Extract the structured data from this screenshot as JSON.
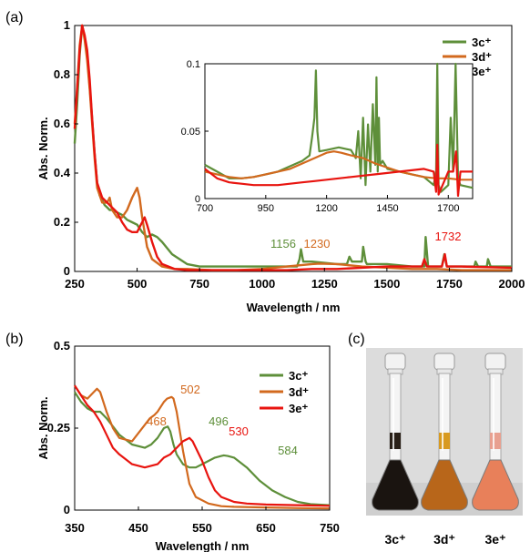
{
  "colors": {
    "3c": "#5e8f3a",
    "3d": "#d2691e",
    "3e": "#e8140f"
  },
  "chart_data": [
    {
      "panel": "(a)",
      "type": "line",
      "xlabel": "Wavelength / nm",
      "ylabel": "Abs. Norm.",
      "xlim": [
        250,
        2000
      ],
      "ylim": [
        0,
        1
      ],
      "xticks": [
        "250",
        "500",
        "750",
        "1000",
        "1250",
        "1500",
        "1750",
        "2000"
      ],
      "yticks": [
        "0",
        "0.2",
        "0.4",
        "0.6",
        "0.8",
        "1"
      ],
      "legend": [
        "3c⁺",
        "3d⁺",
        "3e⁺"
      ],
      "annotations": [
        {
          "text": "1156",
          "series": "3c"
        },
        {
          "text": "1230",
          "series": "3d"
        },
        {
          "text": "1732",
          "series": "3e"
        }
      ],
      "series": [
        {
          "name": "3c⁺",
          "key": "3c",
          "x": [
            250,
            260,
            270,
            280,
            290,
            300,
            310,
            320,
            330,
            340,
            350,
            360,
            370,
            380,
            390,
            400,
            420,
            440,
            460,
            480,
            500,
            520,
            540,
            560,
            580,
            600,
            640,
            700,
            750,
            800,
            900,
            1000,
            1100,
            1140,
            1150,
            1156,
            1165,
            1200,
            1300,
            1340,
            1350,
            1360,
            1400,
            1405,
            1415,
            1420,
            1500,
            1600,
            1650,
            1655,
            1665,
            1700,
            1720,
            1730,
            1740,
            1800,
            1850,
            1855,
            1865,
            1900,
            1905,
            1915,
            2000
          ],
          "y": [
            0.52,
            0.68,
            0.88,
            1.0,
            0.95,
            0.88,
            0.75,
            0.62,
            0.48,
            0.36,
            0.31,
            0.29,
            0.27,
            0.26,
            0.25,
            0.25,
            0.24,
            0.23,
            0.21,
            0.2,
            0.19,
            0.16,
            0.14,
            0.15,
            0.14,
            0.12,
            0.07,
            0.03,
            0.02,
            0.02,
            0.02,
            0.02,
            0.02,
            0.02,
            0.05,
            0.09,
            0.04,
            0.04,
            0.03,
            0.03,
            0.06,
            0.04,
            0.04,
            0.1,
            0.04,
            0.03,
            0.03,
            0.02,
            0.02,
            0.14,
            0.02,
            0.02,
            0.02,
            0.07,
            0.02,
            0.02,
            0.02,
            0.04,
            0.02,
            0.02,
            0.05,
            0.02,
            0.02
          ]
        },
        {
          "name": "3d⁺",
          "key": "3d",
          "x": [
            250,
            260,
            270,
            280,
            290,
            300,
            310,
            320,
            330,
            340,
            360,
            380,
            390,
            400,
            420,
            440,
            460,
            480,
            490,
            500,
            510,
            520,
            540,
            560,
            600,
            650,
            700,
            800,
            900,
            1000,
            1100,
            1200,
            1230,
            1300,
            1400,
            1500,
            1600,
            1700,
            1800,
            2000
          ],
          "y": [
            0.6,
            0.75,
            0.92,
            1.0,
            0.94,
            0.86,
            0.74,
            0.6,
            0.46,
            0.34,
            0.28,
            0.28,
            0.3,
            0.25,
            0.22,
            0.22,
            0.25,
            0.3,
            0.32,
            0.34,
            0.3,
            0.22,
            0.1,
            0.05,
            0.02,
            0.01,
            0.01,
            0.005,
            0.005,
            0.01,
            0.02,
            0.03,
            0.032,
            0.03,
            0.02,
            0.015,
            0.01,
            0.01,
            0.005,
            0.005
          ]
        },
        {
          "name": "3e⁺",
          "key": "3e",
          "x": [
            250,
            260,
            270,
            280,
            290,
            300,
            310,
            320,
            330,
            340,
            360,
            380,
            400,
            420,
            440,
            460,
            480,
            500,
            510,
            520,
            530,
            540,
            560,
            580,
            600,
            650,
            700,
            800,
            900,
            1000,
            1100,
            1200,
            1300,
            1400,
            1500,
            1600,
            1640,
            1650,
            1660,
            1700,
            1720,
            1732,
            1740,
            1800,
            2000
          ],
          "y": [
            0.58,
            0.74,
            0.9,
            1.0,
            0.96,
            0.9,
            0.78,
            0.62,
            0.48,
            0.36,
            0.3,
            0.28,
            0.26,
            0.24,
            0.2,
            0.17,
            0.16,
            0.16,
            0.18,
            0.2,
            0.22,
            0.19,
            0.12,
            0.06,
            0.03,
            0.01,
            0.005,
            0.005,
            0.005,
            0.005,
            0.005,
            0.01,
            0.01,
            0.015,
            0.02,
            0.02,
            0.02,
            0.05,
            0.02,
            0.02,
            0.02,
            0.07,
            0.02,
            0.02,
            0.015
          ]
        }
      ]
    },
    {
      "panel": "inset",
      "type": "line",
      "xlim": [
        700,
        1800
      ],
      "ylim": [
        0,
        0.1
      ],
      "xticks": [
        "700",
        "950",
        "1200",
        "1450",
        "1700"
      ],
      "yticks": [
        "0",
        "0.05",
        "0.1"
      ],
      "series": [
        {
          "name": "3c⁺",
          "key": "3c",
          "x": [
            700,
            750,
            800,
            850,
            900,
            950,
            1000,
            1050,
            1100,
            1130,
            1140,
            1150,
            1156,
            1162,
            1170,
            1200,
            1250,
            1300,
            1320,
            1330,
            1340,
            1350,
            1360,
            1370,
            1380,
            1390,
            1400,
            1405,
            1410,
            1415,
            1420,
            1430,
            1440,
            1450,
            1500,
            1550,
            1600,
            1640,
            1650,
            1655,
            1660,
            1670,
            1700,
            1710,
            1720,
            1730,
            1740,
            1750,
            1800
          ],
          "y": [
            0.025,
            0.02,
            0.015,
            0.015,
            0.016,
            0.018,
            0.02,
            0.024,
            0.028,
            0.032,
            0.045,
            0.06,
            0.095,
            0.05,
            0.035,
            0.036,
            0.038,
            0.036,
            0.03,
            0.05,
            0.015,
            0.06,
            0.01,
            0.055,
            0.02,
            0.07,
            0.025,
            0.09,
            0.02,
            0.06,
            0.025,
            0.028,
            0.025,
            0.022,
            0.02,
            0.018,
            0.016,
            0.01,
            0.02,
            0.1,
            0.01,
            0.005,
            0.01,
            0.06,
            0.02,
            0.1,
            0.015,
            0.01,
            0.008
          ]
        },
        {
          "name": "3d⁺",
          "key": "3d",
          "x": [
            700,
            750,
            800,
            850,
            900,
            950,
            1000,
            1050,
            1100,
            1150,
            1200,
            1230,
            1260,
            1300,
            1350,
            1400,
            1450,
            1500,
            1550,
            1600,
            1650,
            1700,
            1750,
            1800
          ],
          "y": [
            0.02,
            0.018,
            0.016,
            0.015,
            0.016,
            0.018,
            0.02,
            0.022,
            0.026,
            0.03,
            0.034,
            0.035,
            0.034,
            0.032,
            0.03,
            0.026,
            0.023,
            0.02,
            0.018,
            0.016,
            0.015,
            0.015,
            0.014,
            0.014
          ]
        },
        {
          "name": "3e⁺",
          "key": "3e",
          "x": [
            700,
            750,
            800,
            850,
            900,
            950,
            1000,
            1050,
            1100,
            1150,
            1200,
            1250,
            1300,
            1350,
            1400,
            1450,
            1500,
            1550,
            1600,
            1640,
            1650,
            1655,
            1660,
            1700,
            1720,
            1732,
            1740,
            1750,
            1800
          ],
          "y": [
            0.022,
            0.015,
            0.012,
            0.011,
            0.01,
            0.01,
            0.01,
            0.011,
            0.012,
            0.013,
            0.014,
            0.015,
            0.016,
            0.017,
            0.018,
            0.019,
            0.02,
            0.021,
            0.022,
            0.02,
            0.005,
            0.04,
            0.003,
            0.02,
            0.02,
            0.035,
            0.002,
            0.02,
            0.02
          ]
        }
      ]
    },
    {
      "panel": "(b)",
      "type": "line",
      "xlabel": "Wavelength / nm",
      "ylabel": "Abs. Norm.",
      "xlim": [
        350,
        750
      ],
      "ylim": [
        0,
        0.5
      ],
      "xticks": [
        "350",
        "450",
        "550",
        "650",
        "750"
      ],
      "yticks": [
        "0",
        "0.25",
        "0.5"
      ],
      "legend": [
        "3c⁺",
        "3d⁺",
        "3e⁺"
      ],
      "annotations": [
        {
          "text": "468",
          "series": "3d"
        },
        {
          "text": "502",
          "series": "3d"
        },
        {
          "text": "496",
          "series": "3c"
        },
        {
          "text": "530",
          "series": "3e"
        },
        {
          "text": "584",
          "series": "3c"
        }
      ],
      "series": [
        {
          "name": "3c⁺",
          "key": "3c",
          "x": [
            350,
            360,
            370,
            380,
            390,
            400,
            420,
            440,
            460,
            470,
            480,
            490,
            496,
            500,
            505,
            510,
            520,
            530,
            540,
            550,
            560,
            570,
            580,
            584,
            590,
            600,
            620,
            640,
            660,
            680,
            700,
            720,
            750
          ],
          "y": [
            0.36,
            0.33,
            0.31,
            0.3,
            0.3,
            0.28,
            0.23,
            0.2,
            0.19,
            0.2,
            0.22,
            0.25,
            0.255,
            0.24,
            0.2,
            0.17,
            0.14,
            0.13,
            0.13,
            0.14,
            0.15,
            0.16,
            0.165,
            0.167,
            0.165,
            0.16,
            0.13,
            0.09,
            0.06,
            0.04,
            0.025,
            0.018,
            0.015
          ]
        },
        {
          "name": "3d⁺",
          "key": "3d",
          "x": [
            350,
            360,
            370,
            380,
            385,
            390,
            400,
            410,
            420,
            440,
            460,
            468,
            475,
            480,
            490,
            495,
            502,
            505,
            510,
            520,
            530,
            540,
            560,
            580,
            600,
            650,
            700,
            750
          ],
          "y": [
            0.38,
            0.35,
            0.34,
            0.36,
            0.37,
            0.36,
            0.3,
            0.25,
            0.22,
            0.21,
            0.26,
            0.28,
            0.29,
            0.3,
            0.33,
            0.34,
            0.345,
            0.34,
            0.3,
            0.18,
            0.08,
            0.04,
            0.02,
            0.012,
            0.01,
            0.008,
            0.006,
            0.005
          ]
        },
        {
          "name": "3e⁺",
          "key": "3e",
          "x": [
            350,
            360,
            370,
            380,
            390,
            400,
            410,
            420,
            440,
            460,
            480,
            490,
            500,
            510,
            520,
            525,
            530,
            535,
            540,
            550,
            560,
            570,
            580,
            600,
            620,
            650,
            700,
            750
          ],
          "y": [
            0.38,
            0.35,
            0.32,
            0.3,
            0.27,
            0.23,
            0.19,
            0.17,
            0.14,
            0.13,
            0.14,
            0.16,
            0.17,
            0.19,
            0.21,
            0.215,
            0.22,
            0.21,
            0.19,
            0.15,
            0.1,
            0.06,
            0.04,
            0.025,
            0.02,
            0.017,
            0.015,
            0.013
          ]
        }
      ]
    }
  ],
  "photo": {
    "panel": "(c)",
    "labels": [
      "3c⁺",
      "3d⁺",
      "3e⁺"
    ],
    "liquid_colors": [
      "#1a1410",
      "#b8661a",
      "#e8805a"
    ],
    "band_colors": [
      "#2a2018",
      "#d89a20",
      "#e8a090"
    ]
  }
}
